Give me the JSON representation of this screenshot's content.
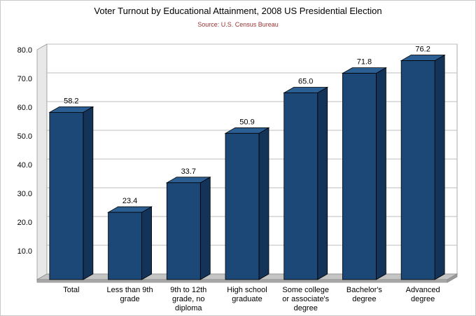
{
  "chart_data": {
    "type": "bar",
    "style": "3d-column",
    "title": "Voter Turnout by Educational Attainment, 2008 US Presidential Election",
    "subtitle": "Source: U.S. Census Bureau",
    "categories": [
      "Total",
      "Less than 9th grade",
      "9th to 12th grade, no diploma",
      "High school graduate",
      "Some college or associate's degree",
      "Bachelor's degree",
      "Advanced degree"
    ],
    "category_label_lines": [
      [
        "Total"
      ],
      [
        "Less than 9th",
        "grade"
      ],
      [
        "9th to 12th",
        "grade, no",
        "diploma"
      ],
      [
        "High school",
        "graduate"
      ],
      [
        "Some college",
        "or associate's",
        "degree"
      ],
      [
        "Bachelor's",
        "degree"
      ],
      [
        "Advanced",
        "degree"
      ]
    ],
    "values": [
      58.2,
      23.4,
      33.7,
      50.9,
      65.0,
      71.8,
      76.2
    ],
    "value_labels": [
      "58.2",
      "23.4",
      "33.7",
      "50.9",
      "65.0",
      "71.8",
      "76.2"
    ],
    "xlabel": "",
    "ylabel": "",
    "ylim": [
      0,
      80
    ],
    "ytick_interval": 10,
    "ytick_labels": [
      "10.0",
      "20.0",
      "30.0",
      "40.0",
      "50.0",
      "60.0",
      "70.0",
      "80.0"
    ],
    "grid": true,
    "legend": "none",
    "colors": {
      "bar_front": "#1c4878",
      "bar_top": "#2b5f94",
      "bar_side": "#133358",
      "bar_outline": "#000000",
      "floor": "#c4c4c4",
      "floor_edge": "#a9a9a9",
      "wall": "#ffffff",
      "wall_border": "#999999",
      "left_wall": "#e8e8e8",
      "gridline": "#bdbdbd",
      "subtitle": "#993333",
      "text": "#000000"
    }
  }
}
